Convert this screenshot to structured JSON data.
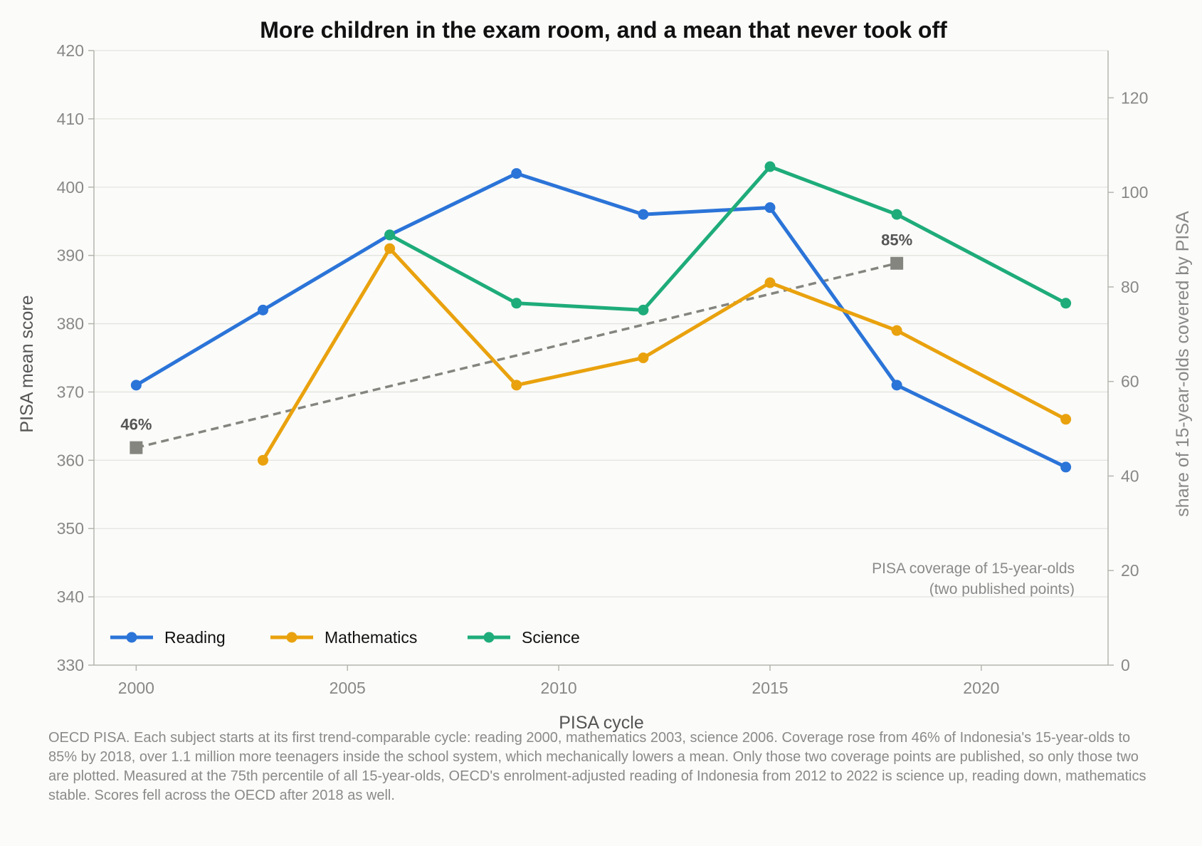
{
  "chart_data": {
    "type": "line",
    "title": "More children in the exam room, and a mean that never took off",
    "xlabel": "PISA cycle",
    "ylabel": "PISA mean score",
    "y2label": "share of 15-year-olds covered by PISA",
    "xlim": [
      1999,
      2023
    ],
    "ylim": [
      330,
      420
    ],
    "y2lim": [
      0,
      130
    ],
    "xticks": [
      2000,
      2005,
      2010,
      2015,
      2020
    ],
    "yticks": [
      330,
      340,
      350,
      360,
      370,
      380,
      390,
      400,
      410,
      420
    ],
    "y2ticks": [
      0,
      20,
      40,
      60,
      80,
      100,
      120
    ],
    "grid": "horizontal",
    "legend_position": "bottom-left",
    "series": [
      {
        "name": "Reading",
        "color": "#2b74d8",
        "x": [
          2000,
          2003,
          2006,
          2009,
          2012,
          2015,
          2018,
          2022
        ],
        "values": [
          371,
          382,
          393,
          402,
          396,
          397,
          371,
          359
        ]
      },
      {
        "name": "Mathematics",
        "color": "#e9a20e",
        "x": [
          2003,
          2006,
          2009,
          2012,
          2015,
          2018,
          2022
        ],
        "values": [
          360,
          391,
          371,
          375,
          386,
          379,
          366
        ]
      },
      {
        "name": "Science",
        "color": "#1eac7a",
        "x": [
          2006,
          2009,
          2012,
          2015,
          2018,
          2022
        ],
        "values": [
          393,
          383,
          382,
          403,
          396,
          383
        ]
      }
    ],
    "coverage": {
      "axis": "right",
      "color": "#858580",
      "x": [
        2000,
        2018
      ],
      "values": [
        46,
        85
      ],
      "labels": [
        "46%",
        "85%"
      ],
      "annotation_line1": "PISA coverage of 15-year-olds",
      "annotation_line2": "(two published points)"
    }
  },
  "footnote": "OECD PISA. Each subject starts at its first trend-comparable cycle: reading 2000, mathematics 2003, science 2006. Coverage rose from 46% of Indonesia's 15-year-olds to 85% by 2018, over 1.1 million more teenagers inside the school system, which mechanically lowers a mean. Only those two coverage points are published, so only those two are plotted. Measured at the 75th percentile of all 15-year-olds, OECD's enrolment-adjusted reading of Indonesia from 2012 to 2022 is science up, reading down, mathematics stable. Scores fell across the OECD after 2018 as well."
}
